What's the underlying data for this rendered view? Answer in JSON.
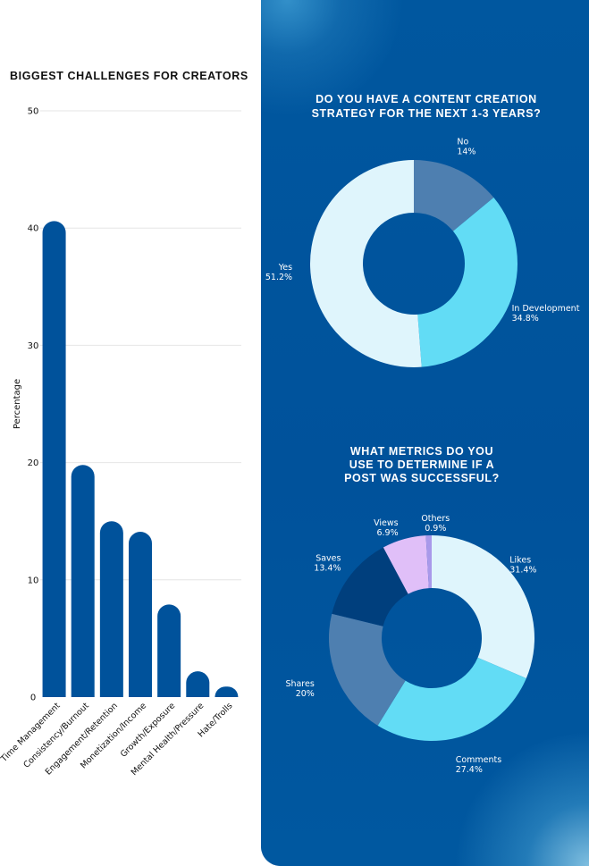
{
  "chart_data": [
    {
      "type": "bar",
      "title": "BIGGEST CHALLENGES FOR CREATORS",
      "xlabel": "",
      "ylabel": "Percentage",
      "ylim": [
        0,
        50
      ],
      "yticks": [
        "0",
        "10",
        "20",
        "30",
        "40",
        "50"
      ],
      "grid": true,
      "legend": "none",
      "categories": [
        "Time Management",
        "Consistency/Burnout",
        "Engagement/Retention",
        "Monetization/Income",
        "Growth/Exposure",
        "Mental Health/Pressure",
        "Hate/Trolls"
      ],
      "values": [
        40.6,
        19.8,
        15.0,
        14.1,
        7.9,
        2.2,
        0.9
      ],
      "bar_color": "#00529b"
    },
    {
      "type": "pie",
      "title": "DO YOU HAVE A CONTENT CREATION STRATEGY FOR THE NEXT 1-3 YEARS?",
      "title_lines": [
        "DO YOU HAVE A CONTENT CREATION",
        "STRATEGY FOR THE NEXT 1-3 YEARS?"
      ],
      "donut": true,
      "slices": [
        {
          "label": "No",
          "value": 14,
          "value_label": "14%",
          "color": "#4e7fb0"
        },
        {
          "label": "In Development",
          "value": 34.8,
          "value_label": "34.8%",
          "color": "#62dcf5"
        },
        {
          "label": "Yes",
          "value": 51.2,
          "value_label": "51.2%",
          "color": "#dff5fc"
        }
      ]
    },
    {
      "type": "pie",
      "title": "WHAT METRICS DO YOU USE TO DETERMINE IF A POST WAS SUCCESSFUL?",
      "title_lines": [
        "WHAT METRICS DO YOU",
        "USE TO DETERMINE IF A",
        "POST WAS SUCCESSFUL?"
      ],
      "donut": true,
      "slices": [
        {
          "label": "Likes",
          "value": 31.4,
          "value_label": "31.4%",
          "color": "#dff5fc"
        },
        {
          "label": "Comments",
          "value": 27.4,
          "value_label": "27.4%",
          "color": "#62dcf5"
        },
        {
          "label": "Shares",
          "value": 20,
          "value_label": "20%",
          "color": "#4e7fb0"
        },
        {
          "label": "Saves",
          "value": 13.4,
          "value_label": "13.4%",
          "color": "#003f7d"
        },
        {
          "label": "Views",
          "value": 6.9,
          "value_label": "6.9%",
          "color": "#e0bff8"
        },
        {
          "label": "Others",
          "value": 0.9,
          "value_label": "0.9%",
          "color": "#a999ea"
        }
      ]
    }
  ],
  "colors": {
    "panel_bg": "#00529b",
    "donut_hole": "#00529b",
    "text_dark": "#111111",
    "text_light": "#ffffff",
    "grid": "#e6e6e6"
  }
}
